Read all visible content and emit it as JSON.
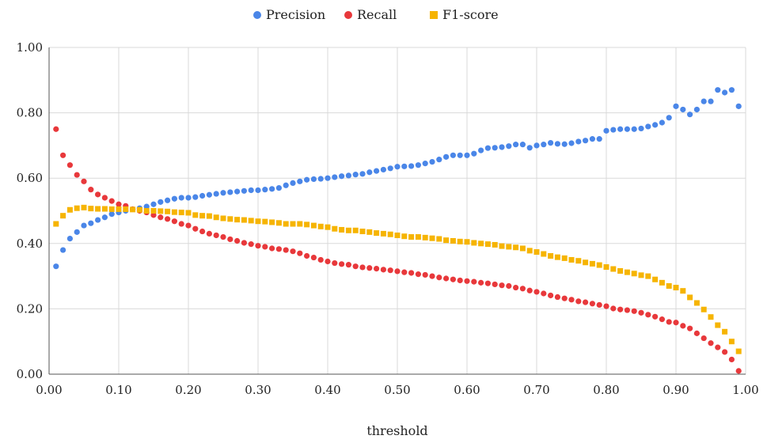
{
  "chart_data": {
    "type": "scatter",
    "title": "",
    "xlabel": "threshold",
    "ylabel": "",
    "xlim": [
      0,
      1
    ],
    "ylim": [
      0,
      1
    ],
    "x_ticks": [
      "0.00",
      "0.10",
      "0.20",
      "0.30",
      "0.40",
      "0.50",
      "0.60",
      "0.70",
      "0.80",
      "0.90",
      "1.00"
    ],
    "y_ticks": [
      "0.00",
      "0.20",
      "0.40",
      "0.60",
      "0.80",
      "1.00"
    ],
    "grid": true,
    "legend_position": "top-center",
    "x": [
      0.01,
      0.02,
      0.03,
      0.04,
      0.05,
      0.06,
      0.07,
      0.08,
      0.09,
      0.1,
      0.11,
      0.12,
      0.13,
      0.14,
      0.15,
      0.16,
      0.17,
      0.18,
      0.19,
      0.2,
      0.21,
      0.22,
      0.23,
      0.24,
      0.25,
      0.26,
      0.27,
      0.28,
      0.29,
      0.3,
      0.31,
      0.32,
      0.33,
      0.34,
      0.35,
      0.36,
      0.37,
      0.38,
      0.39,
      0.4,
      0.41,
      0.42,
      0.43,
      0.44,
      0.45,
      0.46,
      0.47,
      0.48,
      0.49,
      0.5,
      0.51,
      0.52,
      0.53,
      0.54,
      0.55,
      0.56,
      0.57,
      0.58,
      0.59,
      0.6,
      0.61,
      0.62,
      0.63,
      0.64,
      0.65,
      0.66,
      0.67,
      0.68,
      0.69,
      0.7,
      0.71,
      0.72,
      0.73,
      0.74,
      0.75,
      0.76,
      0.77,
      0.78,
      0.79,
      0.8,
      0.81,
      0.82,
      0.83,
      0.84,
      0.85,
      0.86,
      0.87,
      0.88,
      0.89,
      0.9,
      0.91,
      0.92,
      0.93,
      0.94,
      0.95,
      0.96,
      0.97,
      0.98,
      0.99
    ],
    "series": [
      {
        "name": "Precision",
        "color": "#4a86e8",
        "marker": "circle",
        "values": [
          0.33,
          0.38,
          0.415,
          0.435,
          0.455,
          0.462,
          0.472,
          0.48,
          0.49,
          0.495,
          0.5,
          0.505,
          0.508,
          0.513,
          0.52,
          0.527,
          0.532,
          0.537,
          0.54,
          0.54,
          0.542,
          0.546,
          0.549,
          0.552,
          0.555,
          0.557,
          0.559,
          0.561,
          0.563,
          0.563,
          0.565,
          0.567,
          0.57,
          0.578,
          0.585,
          0.59,
          0.595,
          0.597,
          0.598,
          0.6,
          0.603,
          0.606,
          0.608,
          0.611,
          0.613,
          0.618,
          0.622,
          0.626,
          0.63,
          0.635,
          0.636,
          0.637,
          0.64,
          0.645,
          0.65,
          0.657,
          0.665,
          0.67,
          0.67,
          0.67,
          0.675,
          0.685,
          0.692,
          0.693,
          0.695,
          0.698,
          0.703,
          0.703,
          0.693,
          0.7,
          0.703,
          0.708,
          0.705,
          0.704,
          0.707,
          0.712,
          0.715,
          0.72,
          0.72,
          0.745,
          0.748,
          0.75,
          0.75,
          0.75,
          0.752,
          0.758,
          0.763,
          0.77,
          0.785,
          0.82,
          0.81,
          0.795,
          0.81,
          0.835,
          0.835,
          0.87,
          0.862,
          0.87,
          0.82
        ]
      },
      {
        "name": "Recall",
        "color": "#e8383b",
        "marker": "circle",
        "values": [
          0.75,
          0.67,
          0.64,
          0.61,
          0.59,
          0.565,
          0.55,
          0.54,
          0.53,
          0.52,
          0.515,
          0.505,
          0.5,
          0.495,
          0.487,
          0.48,
          0.475,
          0.468,
          0.46,
          0.455,
          0.445,
          0.437,
          0.43,
          0.425,
          0.42,
          0.413,
          0.408,
          0.402,
          0.398,
          0.393,
          0.39,
          0.385,
          0.383,
          0.38,
          0.376,
          0.37,
          0.362,
          0.357,
          0.35,
          0.345,
          0.34,
          0.337,
          0.335,
          0.33,
          0.327,
          0.325,
          0.323,
          0.32,
          0.318,
          0.315,
          0.312,
          0.31,
          0.306,
          0.304,
          0.3,
          0.296,
          0.293,
          0.29,
          0.287,
          0.285,
          0.283,
          0.28,
          0.278,
          0.275,
          0.272,
          0.27,
          0.265,
          0.262,
          0.256,
          0.252,
          0.247,
          0.241,
          0.236,
          0.232,
          0.228,
          0.223,
          0.22,
          0.216,
          0.212,
          0.208,
          0.201,
          0.198,
          0.196,
          0.193,
          0.188,
          0.182,
          0.176,
          0.168,
          0.16,
          0.158,
          0.148,
          0.14,
          0.125,
          0.11,
          0.095,
          0.082,
          0.068,
          0.045,
          0.01
        ]
      },
      {
        "name": "F1-score",
        "color": "#f6b400",
        "marker": "square",
        "values": [
          0.46,
          0.485,
          0.503,
          0.508,
          0.51,
          0.507,
          0.506,
          0.506,
          0.505,
          0.505,
          0.505,
          0.504,
          0.503,
          0.5,
          0.5,
          0.499,
          0.498,
          0.496,
          0.495,
          0.494,
          0.487,
          0.485,
          0.484,
          0.48,
          0.477,
          0.475,
          0.473,
          0.472,
          0.47,
          0.468,
          0.467,
          0.465,
          0.463,
          0.46,
          0.46,
          0.46,
          0.458,
          0.455,
          0.452,
          0.45,
          0.445,
          0.442,
          0.44,
          0.44,
          0.437,
          0.435,
          0.432,
          0.43,
          0.428,
          0.425,
          0.422,
          0.42,
          0.42,
          0.418,
          0.416,
          0.414,
          0.41,
          0.408,
          0.406,
          0.405,
          0.402,
          0.4,
          0.398,
          0.396,
          0.392,
          0.39,
          0.388,
          0.385,
          0.378,
          0.374,
          0.368,
          0.362,
          0.358,
          0.355,
          0.35,
          0.347,
          0.342,
          0.338,
          0.334,
          0.328,
          0.322,
          0.316,
          0.312,
          0.308,
          0.303,
          0.3,
          0.29,
          0.28,
          0.27,
          0.265,
          0.255,
          0.235,
          0.218,
          0.198,
          0.175,
          0.15,
          0.13,
          0.1,
          0.07
        ]
      }
    ]
  }
}
